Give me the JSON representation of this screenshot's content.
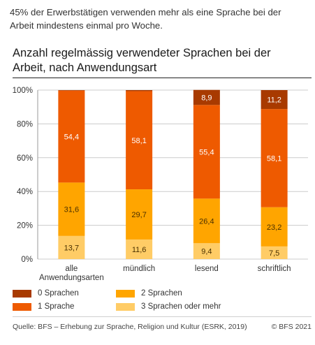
{
  "intro_text": "45% der Erwerbstätigen verwenden mehr als eine Sprache bei der Arbeit mindestens einmal pro Woche.",
  "chart_data": {
    "type": "bar",
    "stacked": true,
    "title": "Anzahl regelmässig verwendeter Sprachen bei der Arbeit, nach Anwendungsart",
    "categories": [
      "alle Anwendungsarten",
      "mündlich",
      "lesend",
      "schriftlich"
    ],
    "ylim": [
      0,
      100
    ],
    "yticks": [
      "0%",
      "20%",
      "40%",
      "60%",
      "80%",
      "100%"
    ],
    "grid": true,
    "legend_position": "bottom",
    "series": [
      {
        "name": "3 Sprachen oder mehr",
        "color": "#ffcc66",
        "values": [
          13.7,
          11.6,
          9.4,
          7.5
        ],
        "labels": [
          "13,7",
          "11,6",
          "9,4",
          "7,5"
        ]
      },
      {
        "name": "2 Sprachen",
        "color": "#ffa500",
        "values": [
          31.6,
          29.7,
          26.4,
          23.2
        ],
        "labels": [
          "31,6",
          "29,7",
          "26,4",
          "23,2"
        ]
      },
      {
        "name": "1 Sprache",
        "color": "#ee5a00",
        "values": [
          54.4,
          58.1,
          55.4,
          58.1
        ],
        "labels": [
          "54,4",
          "58,1",
          "55,4",
          "58,1"
        ]
      },
      {
        "name": "0 Sprachen",
        "color": "#a83a00",
        "values": [
          0.3,
          0.6,
          8.9,
          11.2
        ],
        "labels": [
          "",
          "",
          "8,9",
          "11,2"
        ]
      }
    ]
  },
  "legend": [
    {
      "label": "0 Sprachen",
      "color": "#a83a00"
    },
    {
      "label": "2 Sprachen",
      "color": "#ffa500"
    },
    {
      "label": "1 Sprache",
      "color": "#ee5a00"
    },
    {
      "label": "3 Sprachen oder mehr",
      "color": "#ffcc66"
    }
  ],
  "footer": {
    "source": "Quelle: BFS – Erhebung zur Sprache, Religion und Kultur (ESRK, 2019)",
    "copyright": "© BFS 2021"
  }
}
